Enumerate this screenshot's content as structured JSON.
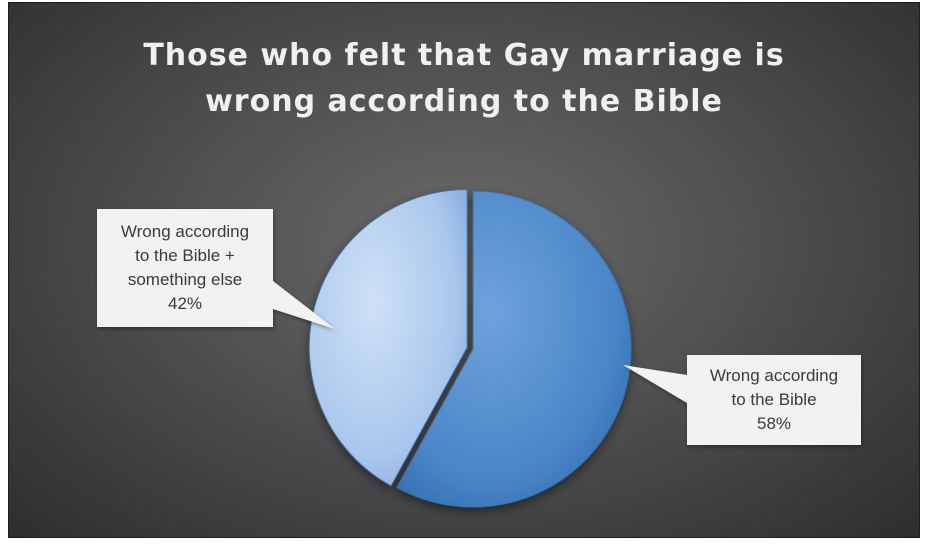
{
  "chart_data": {
    "type": "pie",
    "title": "Those who felt that Gay marriage is wrong according to the Bible",
    "title_lines": [
      "Those who felt that Gay marriage is",
      "wrong according to the Bible"
    ],
    "slices": [
      {
        "label": "Wrong according to the Bible",
        "label_lines": [
          "Wrong according",
          "to the Bible"
        ],
        "value": 58,
        "value_label": "58%",
        "color": "#4a86c8"
      },
      {
        "label": "Wrong according to the Bible + something else",
        "label_lines": [
          "Wrong according",
          "to the Bible +",
          "something else"
        ],
        "value": 42,
        "value_label": "42%",
        "color": "#a9c7ec"
      }
    ],
    "legend": "none",
    "data_labels": "callouts"
  },
  "colors": {
    "background": "#505050",
    "title": "#f0f0f0",
    "callout_fill": "#f2f2f2",
    "callout_text": "#3a3a3a"
  }
}
